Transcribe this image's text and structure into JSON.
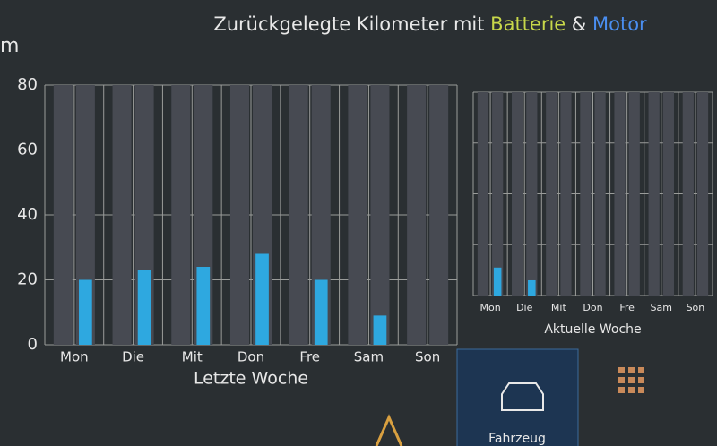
{
  "header": {
    "title": "Zurückgelegte Kilometer mit",
    "joiner": "&",
    "unit_label": "m"
  },
  "chart_data": [
    {
      "type": "bar",
      "x_label": "Letzte Woche",
      "categories": [
        "Mon",
        "Die",
        "Mit",
        "Don",
        "Fre",
        "Sam",
        "Son"
      ],
      "series": [
        {
          "name": "Batterie",
          "color": "#c8d84a",
          "values": [
            0,
            0,
            0,
            0,
            0,
            0,
            0
          ]
        },
        {
          "name": "Motor",
          "color": "#2ea8e0",
          "values": [
            20,
            23,
            24,
            28,
            20,
            9,
            0
          ]
        }
      ],
      "ylim": [
        0,
        80
      ],
      "yticks": [
        0,
        20,
        40,
        60,
        80
      ],
      "tick_labels": true,
      "grid": true
    },
    {
      "type": "bar",
      "x_label": "Aktuelle Woche",
      "categories": [
        "Mon",
        "Die",
        "Mit",
        "Don",
        "Fre",
        "Sam",
        "Son"
      ],
      "series": [
        {
          "name": "Batterie",
          "color": "#c8d84a",
          "values": [
            0,
            0,
            0,
            0,
            0,
            0,
            0
          ]
        },
        {
          "name": "Motor",
          "color": "#2ea8e0",
          "values": [
            11,
            6,
            0,
            0,
            0,
            0,
            0
          ]
        }
      ],
      "ylim": [
        0,
        80
      ],
      "yticks": [
        0,
        20,
        40,
        60,
        80
      ],
      "tick_labels": false,
      "grid": true
    }
  ],
  "nav": {
    "items": [
      "Fahrzeug"
    ]
  }
}
